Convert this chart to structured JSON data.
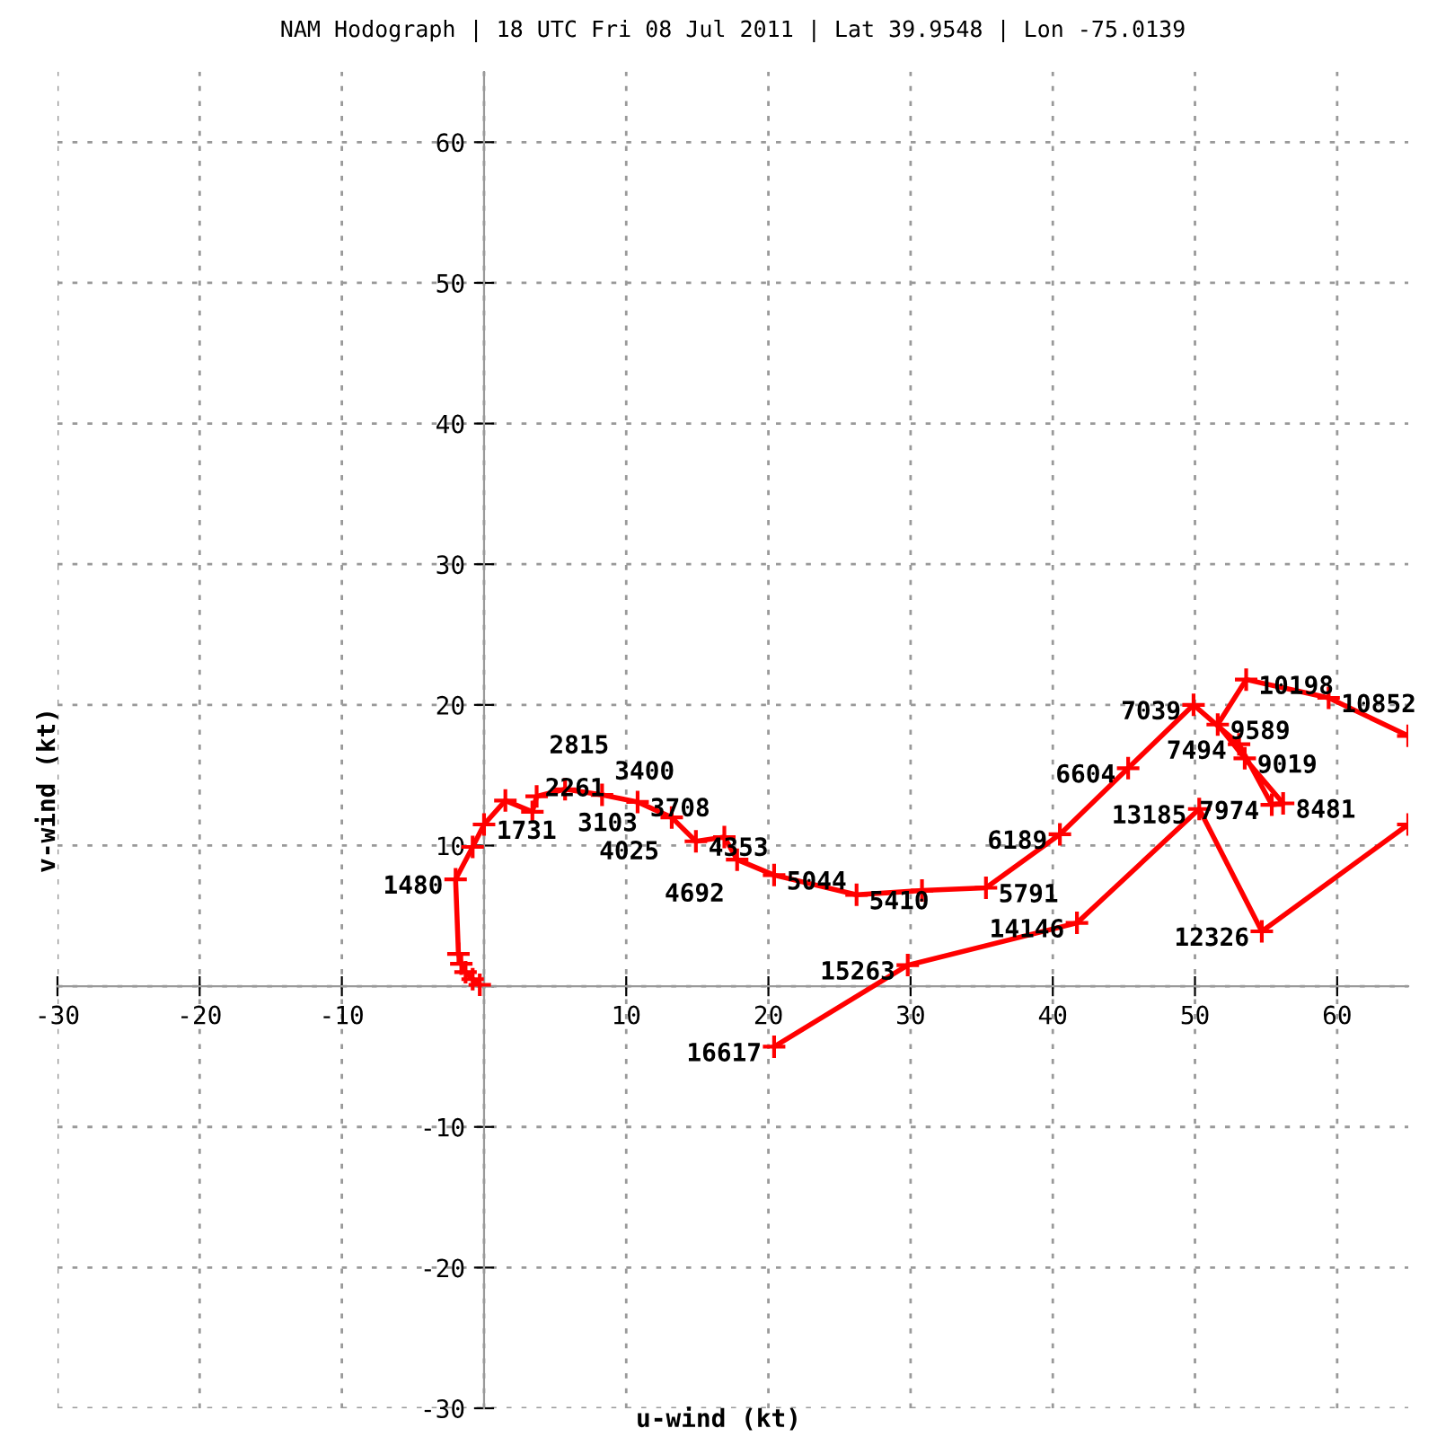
{
  "chart_data": {
    "type": "line",
    "title": "NAM Hodograph | 18 UTC Fri 08 Jul 2011 | Lat 39.9548 | Lon -75.0139",
    "xlabel": "u-wind (kt)",
    "ylabel": "v-wind (kt)",
    "xlim": [
      -30,
      65
    ],
    "ylim": [
      -30,
      65
    ],
    "xticks": [
      -30,
      -20,
      -10,
      {
        "value": 0,
        "label": null
      },
      10,
      20,
      30,
      40,
      50,
      60
    ],
    "yticks": [
      -30,
      -20,
      -10,
      {
        "value": 0,
        "label": null
      },
      10,
      20,
      30,
      40,
      50,
      60
    ],
    "grid": true,
    "marker": "cross",
    "line_style": "solid",
    "x": [
      -0.3,
      -0.8,
      -1.3,
      -1.6,
      -1.8,
      -2.0,
      -0.8,
      0.0,
      1.5,
      3.4,
      3.7,
      5.7,
      8.3,
      10.8,
      13.2,
      14.9,
      16.9,
      17.8,
      20.4,
      26.2,
      30.8,
      35.3,
      40.5,
      45.3,
      49.9,
      53.1,
      55.4,
      56.2,
      53.5,
      51.6,
      53.6,
      59.4,
      65,
      null,
      65,
      54.7,
      50.3,
      41.7,
      29.8,
      20.4
    ],
    "series": [
      {
        "color": "#ff0000",
        "values": [
          0.1,
          0.5,
          1.0,
          1.6,
          2.3,
          7.6,
          9.9,
          11.5,
          13.2,
          12.4,
          13.5,
          14.0,
          13.6,
          13.1,
          12.0,
          10.3,
          10.6,
          9.0,
          7.9,
          6.5,
          6.8,
          7.0,
          10.8,
          15.5,
          20.0,
          17.2,
          12.9,
          13.0,
          16.2,
          18.6,
          21.8,
          20.5,
          17.8,
          null,
          11.5,
          3.9,
          12.6,
          4.5,
          1.5,
          -4.3
        ]
      }
    ],
    "annotations": [
      {
        "text": "1480",
        "x": -2.0,
        "y": 7.6
      },
      {
        "text": "1731",
        "x": 0.0,
        "y": 11.5
      },
      {
        "text": "2261",
        "x": 3.4,
        "y": 12.4
      },
      {
        "text": "2815",
        "x": 3.7,
        "y": 13.5
      },
      {
        "text": "3103",
        "x": 5.7,
        "y": 14.0
      },
      {
        "text": "3400",
        "x": 8.3,
        "y": 13.6
      },
      {
        "text": "3708",
        "x": 10.8,
        "y": 13.1
      },
      {
        "text": "4025",
        "x": 13.2,
        "y": 12.0
      },
      {
        "text": "4353",
        "x": 14.9,
        "y": 10.3
      },
      {
        "text": "4692",
        "x": 17.8,
        "y": 9.0
      },
      {
        "text": "5044",
        "x": 20.4,
        "y": 7.9
      },
      {
        "text": "5410",
        "x": 26.2,
        "y": 6.5
      },
      {
        "text": "5791",
        "x": 35.3,
        "y": 7.0
      },
      {
        "text": "6189",
        "x": 40.5,
        "y": 10.8
      },
      {
        "text": "6604",
        "x": 45.3,
        "y": 15.5
      },
      {
        "text": "7039",
        "x": 49.9,
        "y": 20.0
      },
      {
        "text": "7494",
        "x": 53.1,
        "y": 17.2
      },
      {
        "text": "7974",
        "x": 55.4,
        "y": 12.9
      },
      {
        "text": "8481",
        "x": 56.2,
        "y": 13.0
      },
      {
        "text": "9019",
        "x": 53.5,
        "y": 16.2
      },
      {
        "text": "9589",
        "x": 51.6,
        "y": 18.6
      },
      {
        "text": "10198",
        "x": 53.6,
        "y": 21.8
      },
      {
        "text": "10852",
        "x": 59.4,
        "y": 20.5
      },
      {
        "text": "12326",
        "x": 54.7,
        "y": 3.9
      },
      {
        "text": "13185",
        "x": 50.3,
        "y": 12.6
      },
      {
        "text": "14146",
        "x": 41.7,
        "y": 4.5
      },
      {
        "text": "15263",
        "x": 29.8,
        "y": 1.5
      },
      {
        "text": "16617",
        "x": 20.4,
        "y": -4.3
      }
    ]
  }
}
